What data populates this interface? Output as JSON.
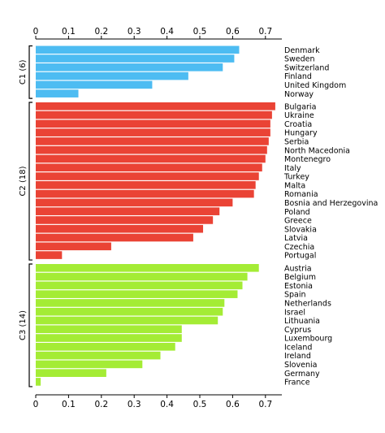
{
  "chart_data": {
    "type": "bar",
    "orientation": "horizontal",
    "xlim": [
      0,
      0.75
    ],
    "xticks": [
      0,
      0.1,
      0.2,
      0.3,
      0.4,
      0.5,
      0.6,
      0.7
    ],
    "x_tick_labels": [
      "0",
      "0.1",
      "0.2",
      "0.3",
      "0.4",
      "0.5",
      "0.6",
      "0.7"
    ],
    "axis_positions": [
      "top",
      "bottom"
    ],
    "grid": false,
    "groups": [
      {
        "label": "C1 (6)",
        "color": "#4dbcf2",
        "categories": [
          "Denmark",
          "Sweden",
          "Switzerland",
          "Finland",
          "United Kingdom",
          "Norway"
        ],
        "values": [
          0.62,
          0.605,
          0.57,
          0.465,
          0.355,
          0.13
        ]
      },
      {
        "label": "C2 (18)",
        "color": "#ea4335",
        "categories": [
          "Bulgaria",
          "Ukraine",
          "Croatia",
          "Hungary",
          "Serbia",
          "North Macedonia",
          "Montenegro",
          "Italy",
          "Turkey",
          "Malta",
          "Romania",
          "Bosnia and Herzegovina",
          "Poland",
          "Greece",
          "Slovakia",
          "Latvia",
          "Czechia",
          "Portugal"
        ],
        "values": [
          0.73,
          0.72,
          0.715,
          0.715,
          0.71,
          0.705,
          0.7,
          0.69,
          0.68,
          0.67,
          0.665,
          0.6,
          0.56,
          0.54,
          0.51,
          0.48,
          0.23,
          0.08
        ]
      },
      {
        "label": "C3 (14)",
        "color": "#a4ec35",
        "categories": [
          "Austria",
          "Belgium",
          "Estonia",
          "Spain",
          "Netherlands",
          "Israel",
          "Lithuania",
          "Cyprus",
          "Luxembourg",
          "Iceland",
          "Ireland",
          "Slovenia",
          "Germany",
          "France"
        ],
        "values": [
          0.68,
          0.645,
          0.63,
          0.615,
          0.575,
          0.57,
          0.555,
          0.445,
          0.445,
          0.425,
          0.38,
          0.325,
          0.215,
          0.015
        ]
      }
    ]
  }
}
